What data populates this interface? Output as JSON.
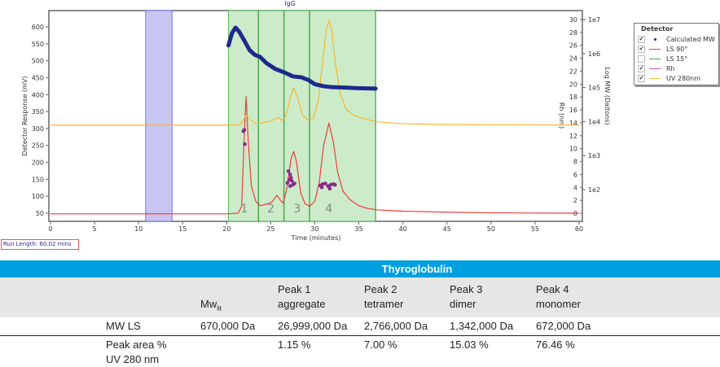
{
  "chart_data": {
    "type": "line",
    "title": "IgG",
    "xlabel": "Time (minutes)",
    "ylabel": "Detector Response (mV)",
    "y2label": "Rh (nm)",
    "y3label": "Log MW (Daltons)",
    "xlim": [
      0,
      60
    ],
    "ylim": [
      25,
      650
    ],
    "rh_lim": [
      0,
      30
    ],
    "logmw_lim": [
      2,
      7
    ],
    "x_ticks": [
      0,
      5,
      10,
      15,
      20,
      25,
      30,
      35,
      40,
      45,
      50,
      55,
      60
    ],
    "y_ticks": [
      50,
      100,
      150,
      200,
      250,
      300,
      350,
      400,
      450,
      500,
      550,
      600
    ],
    "rh_ticks": [
      0,
      2,
      4,
      6,
      8,
      10,
      12,
      14,
      16,
      18,
      20,
      22,
      24,
      26,
      28,
      30
    ],
    "mw_ticks": [
      "1e2",
      "1e3",
      "1e4",
      "1e5",
      "1e6",
      "1e7"
    ],
    "void_region": [
      10.8,
      13.8
    ],
    "peak_regions": [
      [
        20.2,
        23.6
      ],
      [
        23.6,
        26.5
      ],
      [
        26.5,
        29.4
      ],
      [
        29.4,
        36.9
      ]
    ],
    "peak_labels": [
      "1",
      "2",
      "3",
      "4"
    ],
    "series": [
      {
        "name": "LS 90°",
        "color": "#f03c3c",
        "axis": "mV",
        "points": [
          [
            0,
            48
          ],
          [
            20,
            48
          ],
          [
            21.3,
            50
          ],
          [
            21.7,
            70
          ],
          [
            21.95,
            250
          ],
          [
            22.2,
            395
          ],
          [
            22.45,
            260
          ],
          [
            22.8,
            130
          ],
          [
            23.3,
            85
          ],
          [
            23.8,
            72
          ],
          [
            24.5,
            77
          ],
          [
            25.1,
            82
          ],
          [
            25.7,
            103
          ],
          [
            26.1,
            88
          ],
          [
            26.4,
            80
          ],
          [
            26.8,
            120
          ],
          [
            27.3,
            210
          ],
          [
            27.6,
            232
          ],
          [
            27.9,
            205
          ],
          [
            28.4,
            110
          ],
          [
            28.9,
            78
          ],
          [
            29.4,
            70
          ],
          [
            30,
            85
          ],
          [
            30.5,
            140
          ],
          [
            31,
            250
          ],
          [
            31.6,
            316
          ],
          [
            32.1,
            260
          ],
          [
            32.6,
            170
          ],
          [
            33.2,
            115
          ],
          [
            34,
            90
          ],
          [
            35,
            72
          ],
          [
            36,
            64
          ],
          [
            37,
            60
          ],
          [
            40,
            56
          ],
          [
            45,
            53
          ],
          [
            50,
            51
          ],
          [
            60,
            50
          ]
        ]
      },
      {
        "name": "UV 280nm",
        "color": "#f6b531",
        "axis": "mV",
        "points": [
          [
            0,
            310
          ],
          [
            21.3,
            310
          ],
          [
            21.7,
            315
          ],
          [
            22.2,
            340
          ],
          [
            22.7,
            325
          ],
          [
            23.3,
            315
          ],
          [
            24,
            316
          ],
          [
            25,
            322
          ],
          [
            25.8,
            332
          ],
          [
            26.3,
            324
          ],
          [
            26.7,
            335
          ],
          [
            27.2,
            390
          ],
          [
            27.6,
            420
          ],
          [
            28,
            395
          ],
          [
            28.6,
            340
          ],
          [
            29.2,
            325
          ],
          [
            29.8,
            330
          ],
          [
            30.4,
            380
          ],
          [
            30.9,
            500
          ],
          [
            31.3,
            590
          ],
          [
            31.6,
            618
          ],
          [
            31.9,
            595
          ],
          [
            32.3,
            500
          ],
          [
            32.9,
            400
          ],
          [
            33.6,
            355
          ],
          [
            34.5,
            338
          ],
          [
            35.5,
            330
          ],
          [
            36.9,
            320
          ],
          [
            40,
            314
          ],
          [
            45,
            312
          ],
          [
            50,
            311
          ],
          [
            60,
            310
          ]
        ]
      },
      {
        "name": "Calculated MW",
        "color": "#1c2a8c",
        "axis": "logmw",
        "points": [
          [
            20.2,
            6.24
          ],
          [
            20.6,
            6.6
          ],
          [
            21,
            6.76
          ],
          [
            21.4,
            6.65
          ],
          [
            22,
            6.38
          ],
          [
            22.6,
            6.1
          ],
          [
            23.2,
            5.96
          ],
          [
            23.8,
            5.9
          ],
          [
            24.5,
            5.72
          ],
          [
            25.5,
            5.55
          ],
          [
            26.5,
            5.45
          ],
          [
            27.5,
            5.33
          ],
          [
            28.5,
            5.3
          ],
          [
            29.3,
            5.22
          ],
          [
            30,
            5.1
          ],
          [
            31,
            5.04
          ],
          [
            32,
            5.01
          ],
          [
            33.5,
            5.0
          ],
          [
            35,
            4.98
          ],
          [
            36.9,
            4.97
          ]
        ]
      },
      {
        "name": "Rh",
        "color": "#8a2a8a",
        "axis": "rh",
        "points": [
          [
            21.9,
            12.7
          ],
          [
            22.0,
            12.9
          ],
          [
            22.05,
            10.7
          ],
          [
            27.0,
            6.5
          ],
          [
            27.2,
            6.0
          ],
          [
            27.3,
            5.5
          ],
          [
            27.1,
            5.2
          ],
          [
            27.4,
            5.0
          ],
          [
            26.9,
            4.7
          ],
          [
            27.5,
            4.4
          ],
          [
            27.2,
            4.2
          ],
          [
            27.7,
            4.6
          ],
          [
            30.6,
            4.3
          ],
          [
            30.9,
            4.5
          ],
          [
            31.2,
            4.6
          ],
          [
            31.5,
            4.2
          ],
          [
            31.8,
            4.4
          ],
          [
            32.1,
            4.5
          ],
          [
            31.7,
            3.8
          ],
          [
            30.8,
            4.0
          ],
          [
            32.3,
            4.4
          ]
        ]
      }
    ]
  },
  "legend": {
    "title": "Detector",
    "items": [
      {
        "label": "Calculated MW",
        "checked": true,
        "color": "#1c2a8c"
      },
      {
        "label": "LS 90°",
        "checked": true,
        "color": "#f03c3c"
      },
      {
        "label": "LS 15°",
        "checked": false,
        "color": "#3cb04a"
      },
      {
        "label": "Rh",
        "checked": true,
        "color": "#c050c0"
      },
      {
        "label": "UV 280nm",
        "checked": true,
        "color": "#f6c64a"
      }
    ]
  },
  "run_length": "Run Length: 60.02 mins",
  "table": {
    "title": "Thyroglobulin",
    "headers": [
      {
        "l1": "",
        "l2": "Mw",
        "sub": "lit"
      },
      {
        "l1": "Peak 1",
        "l2": "aggregate"
      },
      {
        "l1": "Peak 2",
        "l2": "tetramer"
      },
      {
        "l1": "Peak 3",
        "l2": "dimer"
      },
      {
        "l1": "Peak 4",
        "l2": "monomer"
      }
    ],
    "rows": [
      {
        "label": "MW LS",
        "label2": "",
        "values": [
          "670,000 Da",
          "26,999,000 Da",
          "2,766,000 Da",
          "1,342,000 Da",
          "672,000 Da"
        ]
      },
      {
        "label": "Peak area %",
        "label2": "UV 280 nm",
        "values": [
          "",
          "1.15 %",
          "7.00 %",
          "15.03 %",
          "76.46 %"
        ]
      }
    ]
  }
}
